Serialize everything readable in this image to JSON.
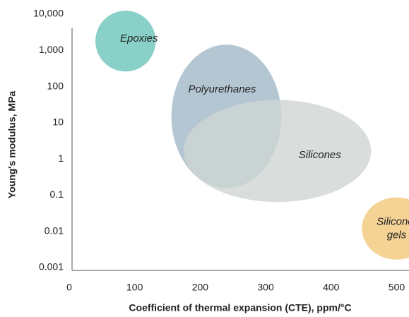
{
  "chart_data": {
    "type": "ellipse",
    "x_label": "Coefficient of thermal expansion (CTE), ppm/°C",
    "y_label": "Young's modulus, MPa",
    "xlim": [
      0,
      520
    ],
    "xticks": [
      0,
      100,
      200,
      300,
      400,
      500
    ],
    "ylim": [
      0.001,
      10000
    ],
    "log_y": true,
    "yticks": [
      {
        "value": 10000,
        "label": "10,000"
      },
      {
        "value": 1000,
        "label": "1,000"
      },
      100,
      10,
      1,
      0.1,
      0.01,
      0.001
    ],
    "series": [
      {
        "name": "Epoxies",
        "color": "#6cc4ba",
        "x": 86,
        "y": 1800,
        "x_radius": 46,
        "y_radius_decades": 0.84
      },
      {
        "name": "Polyurethanes",
        "color": "#a3b8c8",
        "x": 240,
        "y": 15,
        "x_radius": 84,
        "y_radius_decades": 1.98
      },
      {
        "name": "Silicones",
        "color": "#cfd6d3",
        "x": 318,
        "y": 1.66,
        "x_radius": 143,
        "y_radius_decades": 1.41
      },
      {
        "name": "Silicone gels",
        "color": "#f3c87a",
        "x": 500,
        "y": 0.012,
        "x_radius": 53,
        "y_radius_decades": 0.86
      }
    ]
  }
}
